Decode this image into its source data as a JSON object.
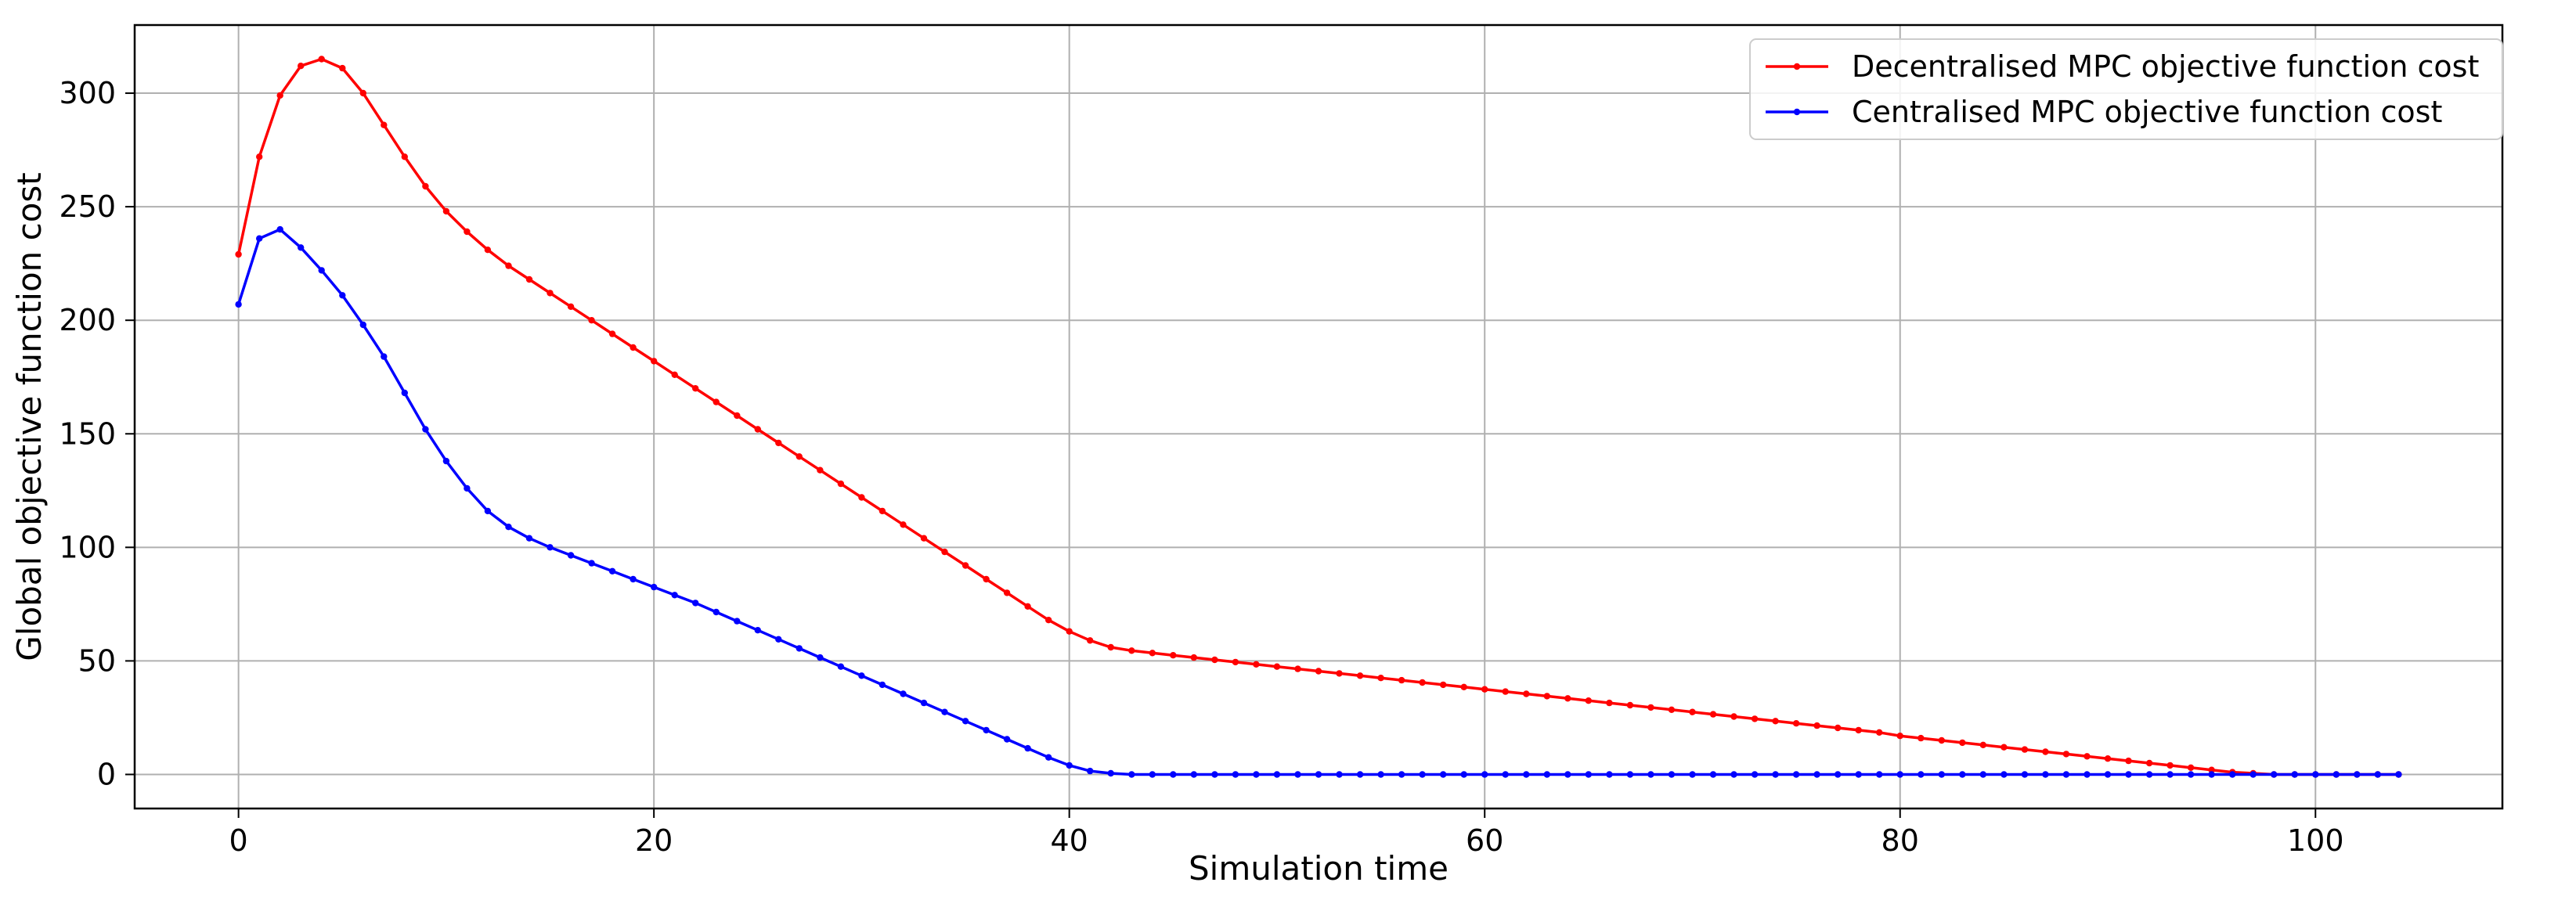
{
  "chart_data": {
    "type": "line",
    "title": "",
    "xlabel": "Simulation time",
    "ylabel": "Global objective function cost",
    "xlim": [
      -5,
      109
    ],
    "ylim": [
      -15,
      330
    ],
    "xticks": [
      0,
      20,
      40,
      60,
      80,
      100
    ],
    "yticks": [
      0,
      50,
      100,
      150,
      200,
      250,
      300
    ],
    "grid": true,
    "legend_position": "top-right",
    "series": [
      {
        "name": "Decentralised MPC objective function cost",
        "color": "#ff0000",
        "marker": "dot",
        "x": [
          0,
          1,
          2,
          3,
          4,
          5,
          6,
          7,
          8,
          9,
          10,
          11,
          12,
          13,
          14,
          15,
          16,
          17,
          18,
          19,
          20,
          21,
          22,
          23,
          24,
          25,
          26,
          27,
          28,
          29,
          30,
          31,
          32,
          33,
          34,
          35,
          36,
          37,
          38,
          39,
          40,
          41,
          42,
          43,
          44,
          45,
          46,
          47,
          48,
          49,
          50,
          51,
          52,
          53,
          54,
          55,
          56,
          57,
          58,
          59,
          60,
          61,
          62,
          63,
          64,
          65,
          66,
          67,
          68,
          69,
          70,
          71,
          72,
          73,
          74,
          75,
          76,
          77,
          78,
          79,
          80,
          81,
          82,
          83,
          84,
          85,
          86,
          87,
          88,
          89,
          90,
          91,
          92,
          93,
          94,
          95,
          96,
          97,
          98,
          99,
          100,
          101,
          102,
          103,
          104
        ],
        "values": [
          229,
          272,
          299,
          312,
          315,
          311,
          300,
          286,
          272,
          259,
          248,
          239,
          231,
          224,
          218,
          212,
          206,
          200,
          194,
          188,
          182,
          176,
          170,
          164,
          158,
          152,
          146,
          140,
          134,
          128,
          122,
          116,
          110,
          104,
          98,
          92,
          86,
          80,
          74,
          68,
          63,
          59,
          56,
          54.5,
          53.5,
          52.5,
          51.5,
          50.5,
          49.5,
          48.5,
          47.5,
          46.5,
          45.5,
          44.5,
          43.5,
          42.5,
          41.5,
          40.5,
          39.5,
          38.5,
          37.5,
          36.5,
          35.5,
          34.5,
          33.5,
          32.5,
          31.5,
          30.5,
          29.5,
          28.5,
          27.5,
          26.5,
          25.5,
          24.5,
          23.5,
          22.5,
          21.5,
          20.5,
          19.5,
          18.5,
          17,
          16,
          15,
          14,
          13,
          12,
          11,
          10,
          9,
          8,
          7,
          6,
          5,
          4,
          3,
          2,
          1,
          0.5,
          0,
          0,
          0,
          0,
          0,
          0,
          0
        ]
      },
      {
        "name": "Centralised MPC objective function cost",
        "color": "#0000ff",
        "marker": "dot",
        "x": [
          0,
          1,
          2,
          3,
          4,
          5,
          6,
          7,
          8,
          9,
          10,
          11,
          12,
          13,
          14,
          15,
          16,
          17,
          18,
          19,
          20,
          21,
          22,
          23,
          24,
          25,
          26,
          27,
          28,
          29,
          30,
          31,
          32,
          33,
          34,
          35,
          36,
          37,
          38,
          39,
          40,
          41,
          42,
          43,
          44,
          45,
          46,
          47,
          48,
          49,
          50,
          51,
          52,
          53,
          54,
          55,
          56,
          57,
          58,
          59,
          60,
          61,
          62,
          63,
          64,
          65,
          66,
          67,
          68,
          69,
          70,
          71,
          72,
          73,
          74,
          75,
          76,
          77,
          78,
          79,
          80,
          81,
          82,
          83,
          84,
          85,
          86,
          87,
          88,
          89,
          90,
          91,
          92,
          93,
          94,
          95,
          96,
          97,
          98,
          99,
          100,
          101,
          102,
          103,
          104
        ],
        "values": [
          207,
          236,
          240,
          232,
          222,
          211,
          198,
          184,
          168,
          152,
          138,
          126,
          116,
          109,
          104,
          100,
          96.5,
          93,
          89.5,
          86,
          82.5,
          79,
          75.5,
          71.5,
          67.5,
          63.5,
          59.5,
          55.5,
          51.5,
          47.5,
          43.5,
          39.5,
          35.5,
          31.5,
          27.5,
          23.5,
          19.5,
          15.5,
          11.5,
          7.5,
          4,
          1.5,
          0.5,
          0,
          0,
          0,
          0,
          0,
          0,
          0,
          0,
          0,
          0,
          0,
          0,
          0,
          0,
          0,
          0,
          0,
          0,
          0,
          0,
          0,
          0,
          0,
          0,
          0,
          0,
          0,
          0,
          0,
          0,
          0,
          0,
          0,
          0,
          0,
          0,
          0,
          0,
          0,
          0,
          0,
          0,
          0,
          0,
          0,
          0,
          0,
          0,
          0,
          0,
          0,
          0,
          0,
          0,
          0,
          0,
          0,
          0,
          0,
          0,
          0,
          0
        ]
      }
    ]
  }
}
